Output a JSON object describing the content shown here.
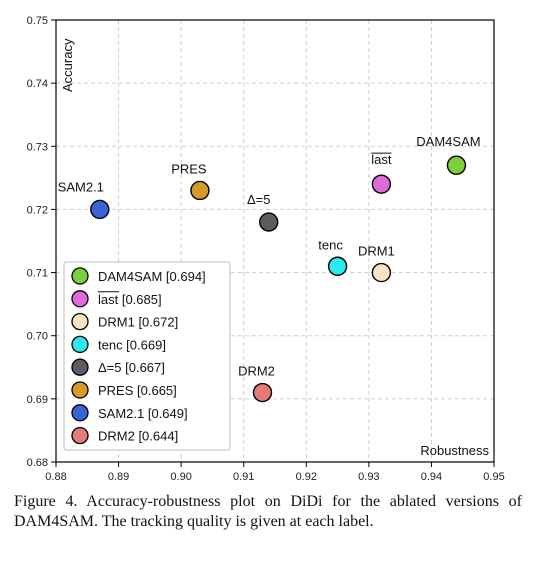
{
  "chart_data": {
    "type": "scatter",
    "xlabel": "Robustness",
    "ylabel": "Accuracy",
    "xlim": [
      0.88,
      0.95
    ],
    "ylim": [
      0.68,
      0.75
    ],
    "xticks": [
      "0.88",
      "0.89",
      "0.90",
      "0.91",
      "0.92",
      "0.93",
      "0.94",
      "0.95"
    ],
    "yticks": [
      "0.68",
      "0.69",
      "0.70",
      "0.71",
      "0.72",
      "0.73",
      "0.74",
      "0.75"
    ],
    "grid": true,
    "legend_position": "bottom-left",
    "points": [
      {
        "label": "DAM4SAM",
        "legend": "DAM4SAM [0.694]",
        "x": 0.944,
        "y": 0.727,
        "color": "#7fce3b",
        "overline": false
      },
      {
        "label": "last",
        "legend": "last [0.685]",
        "x": 0.932,
        "y": 0.724,
        "color": "#dd6ad6",
        "overline": true
      },
      {
        "label": "DRM1",
        "legend": "DRM1 [0.672]",
        "x": 0.932,
        "y": 0.71,
        "color": "#fbe4c4",
        "overline": false
      },
      {
        "label": "tenc",
        "legend": "tenc [0.669]",
        "x": 0.925,
        "y": 0.711,
        "color": "#2ce8ef",
        "overline": false
      },
      {
        "label": "Δ=5",
        "legend": "Δ=5 [0.667]",
        "x": 0.914,
        "y": 0.718,
        "color": "#5c5c5c",
        "overline": false
      },
      {
        "label": "PRES",
        "legend": "PRES [0.665]",
        "x": 0.903,
        "y": 0.723,
        "color": "#d49a2c",
        "overline": false
      },
      {
        "label": "SAM2.1",
        "legend": "SAM2.1 [0.649]",
        "x": 0.887,
        "y": 0.72,
        "color": "#3a63d6",
        "overline": false
      },
      {
        "label": "DRM2",
        "legend": "DRM2 [0.644]",
        "x": 0.913,
        "y": 0.691,
        "color": "#e47b78",
        "overline": false
      }
    ]
  },
  "caption": "Figure 4.  Accuracy-robustness plot on DiDi for the ablated versions of DAM4SAM. The tracking quality is given at each label."
}
